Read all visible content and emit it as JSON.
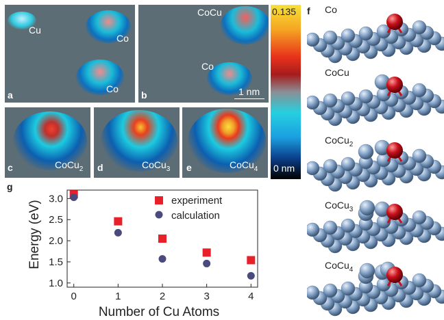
{
  "panel_labels": {
    "a": "a",
    "b": "b",
    "c": "c",
    "d": "d",
    "e": "e",
    "f": "f",
    "g": "g"
  },
  "panel_a": {
    "cu": "Cu",
    "co_top": "Co",
    "co_bottom": "Co"
  },
  "panel_b": {
    "cocu": "CoCu",
    "co": "Co",
    "scale": "1 nm"
  },
  "panel_c": {
    "base": "CoCu",
    "sub": "2"
  },
  "panel_d": {
    "base": "CoCu",
    "sub": "3"
  },
  "panel_e": {
    "base": "CoCu",
    "sub": "4"
  },
  "colorbar": {
    "max": "0.135",
    "min": "0 nm"
  },
  "structures": [
    {
      "base": "Co",
      "sub": ""
    },
    {
      "base": "CoCu",
      "sub": ""
    },
    {
      "base": "CoCu",
      "sub": "2"
    },
    {
      "base": "CoCu",
      "sub": "3"
    },
    {
      "base": "CoCu",
      "sub": "4"
    }
  ],
  "colors": {
    "experiment": "#e8202a",
    "calculation": "#4a4a7d",
    "atom": "#7f9fc4",
    "co_atom": "#c8101a"
  },
  "chart_data": {
    "type": "scatter",
    "xlabel": "Number of Cu Atoms",
    "ylabel": "Energy (eV)",
    "x": [
      0,
      1,
      2,
      3,
      4
    ],
    "xticks": [
      "0",
      "1",
      "2",
      "3",
      "4"
    ],
    "yticks": [
      "1.0",
      "1.5",
      "2.0",
      "2.5",
      "3.0"
    ],
    "xlim": [
      -0.15,
      4.15
    ],
    "ylim": [
      0.9,
      3.2
    ],
    "legend_position": "top-right",
    "series": [
      {
        "name": "experiment",
        "marker": "square",
        "values": [
          3.1,
          2.46,
          2.05,
          1.72,
          1.54
        ]
      },
      {
        "name": "calculation",
        "marker": "circle",
        "values": [
          3.03,
          2.19,
          1.57,
          1.46,
          1.17
        ]
      }
    ]
  }
}
